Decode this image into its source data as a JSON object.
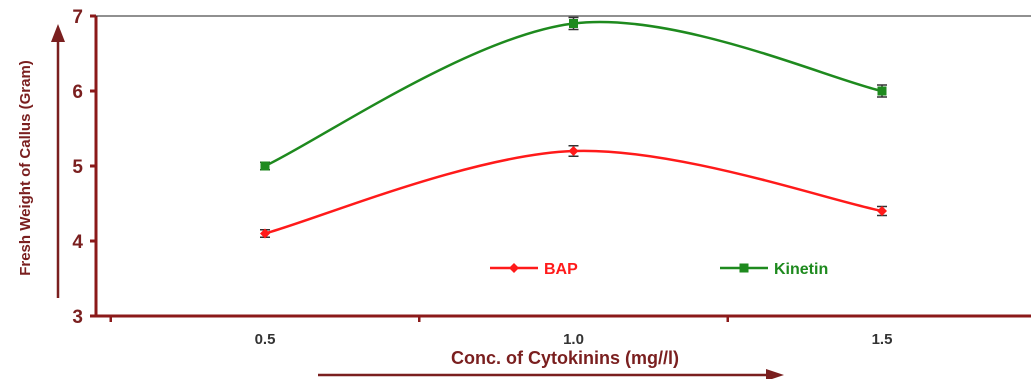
{
  "chart_data": {
    "type": "line",
    "title": "",
    "xlabel": "Conc. of Cytokinins (mg//l)",
    "ylabel": "Fresh Weight of Callus (Gram)",
    "categories": [
      "0.5",
      "1.0",
      "1.5"
    ],
    "x": [
      0.5,
      1.0,
      1.5
    ],
    "ylim": [
      3,
      7
    ],
    "yticks": [
      "3",
      "4",
      "5",
      "6",
      "7"
    ],
    "grid": false,
    "legend_position": "inside-bottom-center",
    "series": [
      {
        "name": "BAP",
        "values": [
          4.1,
          5.2,
          4.4
        ],
        "errors": [
          0.05,
          0.07,
          0.06
        ],
        "color": "#ff1a1a",
        "marker": "diamond"
      },
      {
        "name": "Kinetin",
        "values": [
          5.0,
          6.9,
          6.0
        ],
        "errors": [
          0.05,
          0.08,
          0.08
        ],
        "color": "#1e8a1e",
        "marker": "square"
      }
    ],
    "axis_color": "#8b1a1a",
    "label_color": "#7a1f1f"
  }
}
